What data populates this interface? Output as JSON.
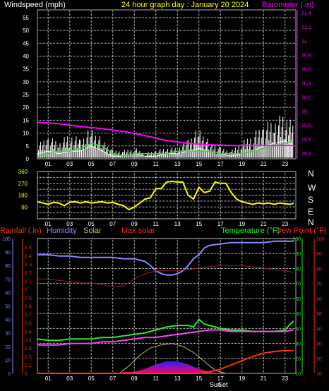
{
  "header": {
    "left": "Windspeed (mph)",
    "center": "24 hour graph day : January 20 2024",
    "right": "Barometer (.in)"
  },
  "colors": {
    "wind": "#ffffff",
    "gust": "#ffffff",
    "avg_wind": "#33dd33",
    "barometer": "#ff00ff",
    "direction": "#ffff00",
    "grid": "#d8d8d8",
    "label_white": "#ffffff",
    "label_yellow": "#ffff00",
    "label_magenta": "#ff00ff",
    "rain": "#ff3300",
    "humidity": "#8888ff",
    "solar": "#bbbb77",
    "max_solar": "#ff2222",
    "temperature": "#22ee22",
    "dewpoint": "#ff2222",
    "hum_axis": "#8888ff",
    "temp_axis": "#22ee22",
    "dew_axis": "#ff2222"
  },
  "x_labels": [
    "01",
    "03",
    "05",
    "07",
    "09",
    "11",
    "13",
    "15",
    "17",
    "19",
    "21",
    "23"
  ],
  "sun_label": "Sun",
  "set_label": "Set",
  "chart_data": [
    {
      "type": "line",
      "name": "wind",
      "xlabel": "",
      "ylabel": "Windspeed (mph)",
      "y2label": "Barometer (.in)",
      "xlim": [
        0,
        24
      ],
      "ylim": [
        0,
        58
      ],
      "y_ticks": [
        0,
        5,
        10,
        15,
        20,
        25,
        30,
        35,
        40,
        45,
        50,
        55
      ],
      "y2lim": [
        29.32,
        31.44
      ],
      "y2_ticks": [
        "29.4",
        "29.6",
        "29.8",
        "30",
        "30.2",
        "30.4",
        "30.6",
        "30.8",
        "31",
        "31.2",
        "31.4"
      ],
      "series": [
        {
          "name": "Gust",
          "x": [
            0,
            1,
            2,
            3,
            4,
            5,
            6,
            7,
            8,
            9,
            10,
            11,
            12,
            13,
            14,
            15,
            16,
            17,
            18,
            19,
            20,
            21,
            22,
            23,
            23.8
          ],
          "values": [
            5,
            8,
            6,
            9,
            7,
            11,
            7,
            3,
            3,
            4,
            2,
            3,
            4,
            4,
            7,
            11,
            6,
            4,
            3,
            6,
            9,
            12,
            14,
            16,
            12
          ]
        },
        {
          "name": "Wind",
          "x": [
            0,
            1,
            2,
            3,
            4,
            5,
            6,
            7,
            8,
            9,
            10,
            11,
            12,
            13,
            14,
            15,
            16,
            17,
            18,
            19,
            20,
            21,
            22,
            23,
            23.8
          ],
          "values": [
            2,
            3,
            2,
            3,
            3,
            5,
            3,
            1,
            1,
            2,
            1,
            1,
            2,
            2,
            3,
            4,
            3,
            2,
            1,
            2,
            3,
            5,
            6,
            7,
            5
          ]
        },
        {
          "name": "Average",
          "x": [
            0,
            1,
            2,
            3,
            4,
            5,
            6,
            7,
            8,
            9,
            10,
            11,
            12,
            13,
            14,
            15,
            16,
            17,
            18,
            19,
            20,
            21,
            22,
            23,
            23.8
          ],
          "values": [
            1,
            2,
            3,
            3,
            4,
            6,
            5,
            2,
            1,
            2,
            2,
            2,
            2,
            3,
            3,
            3,
            3,
            2,
            2,
            2,
            3,
            4,
            5,
            6,
            7
          ]
        },
        {
          "name": "Barometer",
          "axis": "y2",
          "x": [
            0,
            2,
            4,
            6,
            8,
            10,
            12,
            14,
            16,
            18,
            20,
            22,
            23.8
          ],
          "values": [
            29.84,
            29.82,
            29.78,
            29.75,
            29.71,
            29.65,
            29.58,
            29.54,
            29.52,
            29.51,
            29.51,
            29.51,
            29.51
          ]
        }
      ]
    },
    {
      "type": "line",
      "name": "direction",
      "xlim": [
        0,
        24
      ],
      "ylim": [
        0,
        360
      ],
      "y_ticks": [
        0,
        45,
        90,
        135,
        180,
        225,
        270,
        315,
        360
      ],
      "y_tick_labels": [
        "",
        "",
        "90",
        "",
        "180",
        "",
        "270",
        "",
        "360"
      ],
      "compass": [
        "N",
        "W",
        "S",
        "E",
        "N"
      ],
      "series": [
        {
          "name": "Direction",
          "x": [
            0,
            0.5,
            1,
            1.5,
            2,
            2.5,
            3,
            3.5,
            4,
            4.5,
            5,
            5.5,
            6,
            6.5,
            7,
            7.5,
            8,
            8.5,
            9,
            9.5,
            10,
            10.5,
            11,
            11.5,
            12,
            12.5,
            13,
            13.5,
            14,
            14.5,
            15,
            15.5,
            16,
            16.5,
            17,
            17.5,
            18,
            18.5,
            19,
            19.5,
            20,
            20.5,
            21,
            21.5,
            22,
            22.5,
            23,
            23.5,
            23.8
          ],
          "values": [
            130,
            120,
            110,
            125,
            120,
            100,
            125,
            130,
            120,
            130,
            120,
            125,
            130,
            120,
            125,
            110,
            100,
            70,
            90,
            120,
            150,
            160,
            230,
            230,
            280,
            285,
            280,
            280,
            180,
            150,
            240,
            200,
            210,
            280,
            270,
            270,
            200,
            150,
            130,
            120,
            110,
            120,
            115,
            120,
            110,
            120,
            115,
            110,
            120
          ]
        }
      ]
    },
    {
      "type": "line",
      "name": "weather",
      "xlim": [
        0,
        24
      ],
      "legend": [
        "Rainfall (.in)",
        "Humidity",
        "Solar",
        "Max solar",
        "Temperature (°F)",
        "Dew Point (°F)"
      ],
      "axes": {
        "rain": {
          "lim": [
            0,
            1.6
          ],
          "ticks": [
            "0",
            "0.1",
            "0.2",
            "0.3",
            "0.4",
            "0.5",
            "0.6",
            "0.7",
            "0.8",
            "0.9",
            "1",
            "1.1",
            "1.2",
            "1.3",
            "1.4",
            "1.5"
          ]
        },
        "humidity": {
          "lim": [
            0,
            100
          ],
          "ticks": [
            "0",
            "10",
            "20",
            "30",
            "40",
            "50",
            "60",
            "70",
            "80",
            "90",
            "100"
          ]
        },
        "temperature": {
          "lim": [
            10,
            100
          ],
          "ticks": [
            "10",
            "20",
            "30",
            "40",
            "50",
            "60",
            "70",
            "80",
            "90",
            "100"
          ]
        },
        "dewpoint": {
          "lim": [
            10,
            100
          ],
          "ticks": [
            "10",
            "20",
            "30",
            "40",
            "50",
            "60",
            "70",
            "80",
            "90",
            "100"
          ]
        }
      },
      "series": [
        {
          "name": "Humidity",
          "axis": "humidity",
          "x": [
            0,
            1,
            2,
            3,
            4,
            5,
            6,
            7,
            8,
            9,
            10,
            10.5,
            11,
            11.5,
            12,
            12.5,
            13,
            13.5,
            14,
            14.5,
            15,
            15.5,
            16,
            17,
            18,
            19,
            20,
            21,
            22,
            23,
            23.8
          ],
          "values": [
            88,
            88,
            87,
            87,
            86,
            86,
            86,
            86,
            85,
            85,
            83,
            80,
            76,
            74,
            73,
            73,
            74,
            76,
            80,
            85,
            88,
            93,
            95,
            96,
            97,
            97,
            97,
            97,
            98,
            98,
            98
          ]
        },
        {
          "name": "Temperature",
          "axis": "temperature",
          "x": [
            0,
            1,
            2,
            3,
            4,
            5,
            6,
            7,
            8,
            9,
            10,
            11,
            12,
            13,
            14,
            14.5,
            15,
            15.5,
            16,
            17,
            18,
            19,
            20,
            21,
            22,
            23,
            23.5,
            23.8
          ],
          "values": [
            33,
            32,
            32,
            33,
            33,
            33,
            34,
            34,
            35,
            36,
            37,
            39,
            41,
            42,
            42,
            41,
            46,
            43,
            42,
            40,
            39,
            39,
            38,
            38,
            38,
            39,
            43,
            45
          ]
        },
        {
          "name": "Dew Point",
          "axis": "dewpoint",
          "x": [
            0,
            1,
            2,
            3,
            4,
            5,
            6,
            7,
            8,
            9,
            10,
            11,
            12,
            13,
            14,
            15,
            16,
            17,
            18,
            19,
            20,
            21,
            22,
            23,
            23.8
          ],
          "values": [
            29,
            29,
            29,
            30,
            30,
            30,
            31,
            31,
            32,
            33,
            34,
            34,
            35,
            36,
            37,
            38,
            39,
            39,
            38,
            38,
            38,
            38,
            38,
            38,
            39
          ]
        },
        {
          "name": "Solar",
          "axis": "temperature",
          "x": [
            0,
            7.8,
            8,
            9,
            10,
            11,
            12,
            13,
            14,
            15,
            16,
            17,
            18,
            23.8
          ],
          "values": [
            10,
            10,
            11,
            11,
            13,
            16,
            18,
            18,
            16,
            13,
            11,
            10,
            10,
            10
          ]
        },
        {
          "name": "Max solar",
          "axis": "temperature",
          "x": [
            0,
            7.6,
            8.5,
            9.5,
            10.5,
            11.5,
            12.5,
            13.5,
            14.5,
            15.5,
            16.5,
            17.5,
            23.8
          ],
          "values": [
            10,
            10,
            15,
            22,
            27,
            29,
            30,
            28,
            24,
            18,
            12,
            10,
            10
          ]
        },
        {
          "name": "Rainfall",
          "axis": "rain",
          "x": [
            0,
            15,
            16,
            17,
            18,
            19,
            20,
            21,
            22,
            23,
            23.8
          ],
          "values": [
            0,
            0,
            0.02,
            0.05,
            0.1,
            0.15,
            0.2,
            0.24,
            0.26,
            0.27,
            0.27
          ]
        },
        {
          "name": "Max humidity trace",
          "axis": "humidity",
          "x": [
            0,
            1,
            2,
            3,
            4,
            5,
            6,
            7,
            8,
            9,
            10,
            11,
            12,
            13,
            14,
            15,
            16,
            17,
            18,
            19,
            20,
            21,
            22,
            23,
            23.8
          ],
          "values": [
            70,
            70,
            69,
            68,
            67,
            67,
            66,
            64,
            65,
            70,
            74,
            76,
            76,
            76,
            77,
            78,
            79,
            80,
            80,
            80,
            79,
            78,
            77,
            76,
            75
          ]
        }
      ]
    }
  ]
}
